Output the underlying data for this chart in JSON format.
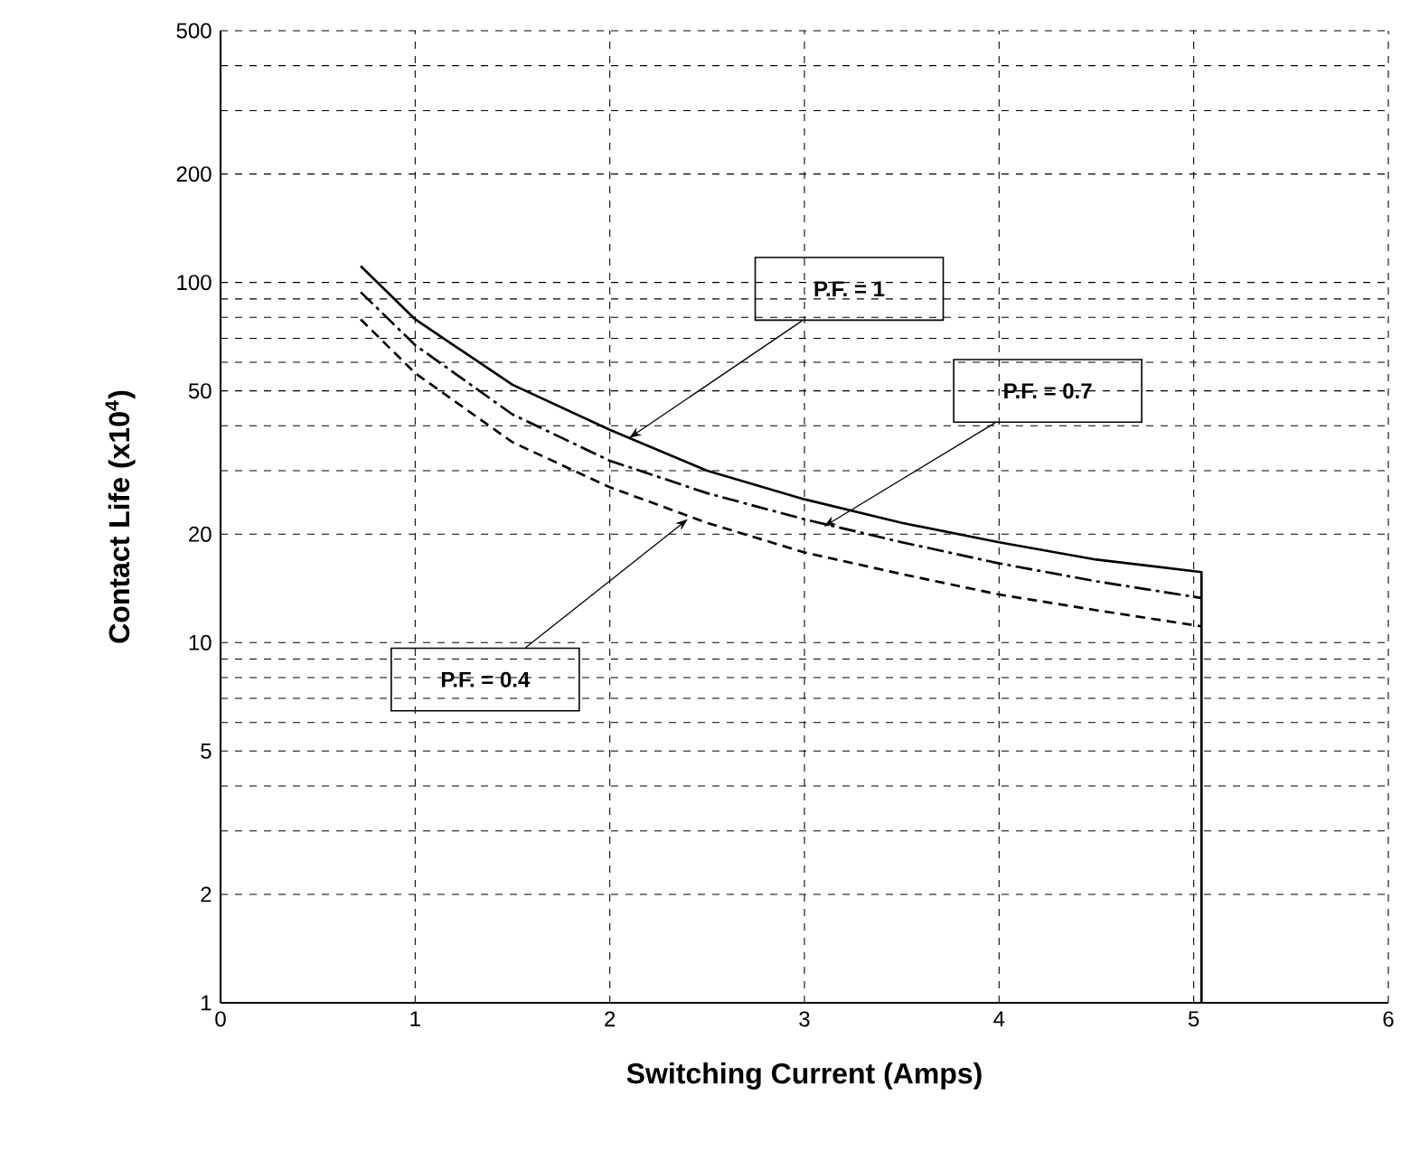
{
  "chart_data": {
    "type": "line",
    "xlabel": "Switching Current (Amps)",
    "ylabel": "Contact Life (x10$^{4}$)",
    "xlim": [
      0,
      6
    ],
    "xticks": [
      0,
      1,
      2,
      3,
      4,
      5,
      6
    ],
    "ylim": [
      1,
      500
    ],
    "log": "y",
    "yticks": [
      1,
      2,
      {
        "value": 3,
        "label": null
      },
      {
        "value": 4,
        "label": null
      },
      5,
      {
        "value": 6,
        "label": null
      },
      {
        "value": 7,
        "label": null
      },
      {
        "value": 8,
        "label": null
      },
      {
        "value": 9,
        "label": null
      },
      10,
      20,
      {
        "value": 30,
        "label": null
      },
      {
        "value": 40,
        "label": null
      },
      50,
      {
        "value": 60,
        "label": null
      },
      {
        "value": 70,
        "label": null
      },
      {
        "value": 80,
        "label": null
      },
      {
        "value": 90,
        "label": null
      },
      100,
      200,
      {
        "value": 300,
        "label": null
      },
      {
        "value": 400,
        "label": null
      },
      500
    ],
    "grid": true,
    "series": [
      {
        "color": "#000000",
        "line_style": "solid",
        "x": [
          0.72,
          1,
          1.5,
          2,
          2.5,
          3,
          3.5,
          4,
          4.5,
          5.04,
          5.04
        ],
        "values": [
          111,
          79,
          52,
          39,
          30,
          25,
          21.5,
          19,
          17,
          15.7,
          1
        ]
      },
      {
        "color": "#000000",
        "line_style": "dashdot",
        "x": [
          0.72,
          1,
          1.5,
          2,
          2.5,
          3,
          3.5,
          4,
          4.5,
          5.04
        ],
        "values": [
          94,
          67,
          43,
          32,
          26,
          22,
          19,
          16.6,
          14.8,
          13.3
        ]
      },
      {
        "color": "#000000",
        "line_style": "dashed",
        "x": [
          0.72,
          1,
          1.5,
          2,
          2.5,
          3,
          3.5,
          4,
          4.5,
          5.04
        ],
        "values": [
          79,
          56,
          36,
          27,
          21.5,
          17.8,
          15.5,
          13.6,
          12.3,
          11.1
        ]
      }
    ],
    "annotations": [
      {
        "text": "P.F. = 1",
        "x": 2.1,
        "y": 37
      },
      {
        "text": "P.F. = 0.7",
        "x": 3.1,
        "y": 21
      },
      {
        "text": "P.F. = 0.4",
        "x": 2.4,
        "y": 22
      }
    ]
  }
}
